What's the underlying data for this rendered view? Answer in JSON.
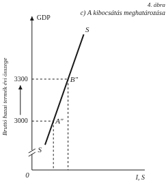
{
  "chart_data": {
    "type": "line",
    "figure_label": "4. ábra",
    "title": "c) A kibocsátás meghatározása",
    "xlabel": "I, S",
    "ylabel": "Bruttó hazai termék évi összege",
    "yaxis_title": "GDP",
    "x": [
      11.6,
      19,
      32,
      45.9
    ],
    "values": [
      2830,
      3000,
      3300,
      3620
    ],
    "color": "#1a1a1a",
    "xlim": [
      0,
      100
    ],
    "ylim": [
      2650,
      3700
    ],
    "yticks": [
      3000,
      3300
    ],
    "grid": false,
    "tick_labels": "y",
    "points": [
      {
        "label": "A″",
        "x": 19,
        "y": 3000
      },
      {
        "label": "B″",
        "x": 32,
        "y": 3300
      }
    ],
    "annotations": [
      {
        "text": "S",
        "x": 49,
        "y": 3650
      },
      {
        "text": "S",
        "x": 7,
        "y": 2790
      },
      {
        "text": "0",
        "x": 0,
        "y": 2650
      }
    ]
  }
}
